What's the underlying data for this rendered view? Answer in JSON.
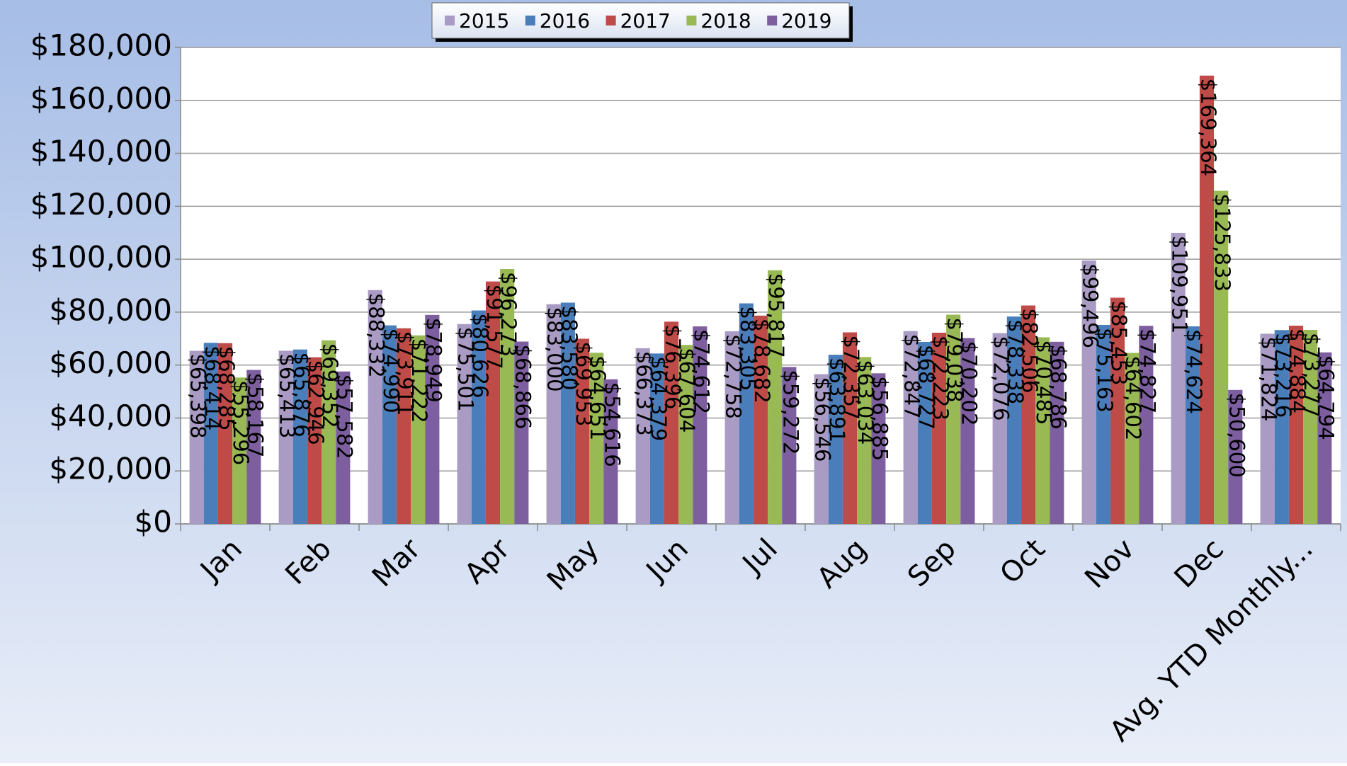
{
  "chart_data": {
    "type": "bar",
    "categories": [
      "Jan",
      "Feb",
      "Mar",
      "Apr",
      "May",
      "Jun",
      "Jul",
      "Aug",
      "Sep",
      "Oct",
      "Nov",
      "Dec",
      "Avg. YTD Monthly..."
    ],
    "series": [
      {
        "name": "2015",
        "color": "#a99bc4",
        "values": [
          65398,
          65413,
          88332,
          75501,
          83000,
          66373,
          72758,
          56546,
          72847,
          72076,
          99496,
          109951,
          71824
        ],
        "value_labels": [
          "$65,398",
          "$65,413",
          "$88,332",
          "$75,501",
          "$83,000",
          "$66,373",
          "$72,758",
          "$56,546",
          "$72,847",
          "$72,076",
          "$99,496",
          "$109,951",
          "$71,824"
        ]
      },
      {
        "name": "2016",
        "color": "#4a7ebb",
        "values": [
          68414,
          65876,
          74990,
          80626,
          83580,
          64379,
          83305,
          63891,
          68727,
          78338,
          75163,
          74624,
          73216
        ],
        "value_labels": [
          "$68,414",
          "$65,876",
          "$74,990",
          "$80,626",
          "$83,580",
          "$64,379",
          "$83,305",
          "$63,891",
          "$68,727",
          "$78,338",
          "$75,163",
          "$74,624",
          "$73,216"
        ]
      },
      {
        "name": "2017",
        "color": "#be4b48",
        "values": [
          68285,
          62946,
          73911,
          91577,
          69953,
          76396,
          78682,
          72357,
          72223,
          82506,
          85453,
          169364,
          74884
        ],
        "value_labels": [
          "$68,285",
          "$62,946",
          "$73,911",
          "$91,577",
          "$69,953",
          "$76,396",
          "$78,682",
          "$72,357",
          "$72,223",
          "$82,506",
          "$85,453",
          "$169,364",
          "$74,884"
        ]
      },
      {
        "name": "2018",
        "color": "#98b954",
        "values": [
          55296,
          69352,
          71222,
          96273,
          64651,
          67604,
          95817,
          63034,
          79038,
          70485,
          64602,
          125833,
          73277
        ],
        "value_labels": [
          "$55,296",
          "$69,352",
          "$71,222",
          "$96,273",
          "$64,651",
          "$67,604",
          "$95,817",
          "$63,034",
          "$79,038",
          "$70,485",
          "$64,602",
          "$125,833",
          "$73,277"
        ]
      },
      {
        "name": "2019",
        "color": "#7d5fa0",
        "values": [
          58167,
          57582,
          78949,
          68866,
          54616,
          74612,
          59272,
          56885,
          70202,
          68786,
          74827,
          50600,
          64794
        ],
        "value_labels": [
          "$58,167",
          "$57,582",
          "$78,949",
          "$68,866",
          "$54,616",
          "$74,612",
          "$59,272",
          "$56,885",
          "$70,202",
          "$68,786",
          "$74,827",
          "$50,600",
          "$64,794"
        ]
      }
    ],
    "ylim": [
      0,
      180000
    ],
    "yticks": [
      {
        "value": 0,
        "label": "$0"
      },
      {
        "value": 20000,
        "label": "$20,000"
      },
      {
        "value": 40000,
        "label": "$40,000"
      },
      {
        "value": 60000,
        "label": "$60,000"
      },
      {
        "value": 80000,
        "label": "$80,000"
      },
      {
        "value": 100000,
        "label": "$100,000"
      },
      {
        "value": 120000,
        "label": "$120,000"
      },
      {
        "value": 140000,
        "label": "$140,000"
      },
      {
        "value": 160000,
        "label": "$160,000"
      },
      {
        "value": 180000,
        "label": "$180,000"
      }
    ],
    "grid": true,
    "legend": "top"
  }
}
